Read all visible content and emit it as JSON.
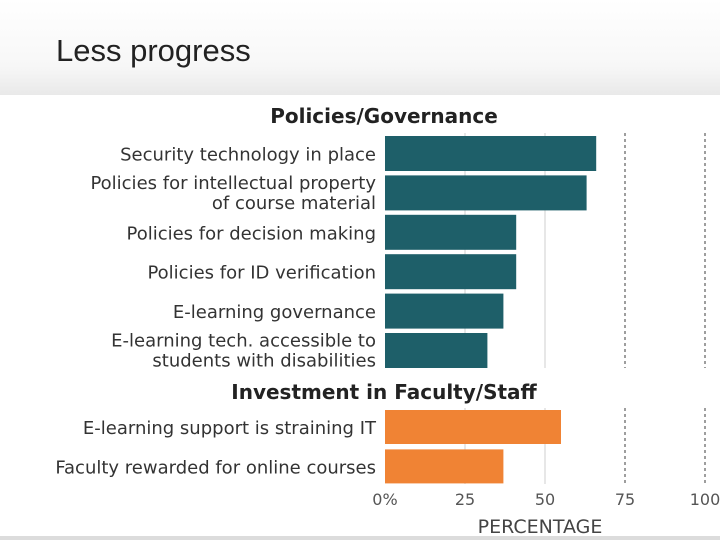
{
  "slide": {
    "title": "Less progress"
  },
  "chart_data": {
    "type": "bar",
    "orientation": "horizontal",
    "xlabel": "PERCENTAGE",
    "xlim": [
      0,
      100
    ],
    "x_ticks": [
      "0%",
      "25",
      "50",
      "75",
      "100"
    ],
    "groups": [
      {
        "title": "Policies/Governance",
        "color": "#1e5f69",
        "bars": [
          {
            "label": [
              "Security technology in place"
            ],
            "value": 66
          },
          {
            "label": [
              "Policies for intellectual property",
              "of course material"
            ],
            "value": 63
          },
          {
            "label": [
              "Policies for decision making"
            ],
            "value": 41
          },
          {
            "label": [
              "Policies for ID verification"
            ],
            "value": 41
          },
          {
            "label": [
              "E-learning governance"
            ],
            "value": 37
          },
          {
            "label": [
              "E-learning tech. accessible to",
              "students with disabilities"
            ],
            "value": 32
          }
        ]
      },
      {
        "title": "Investment in Faculty/Staff",
        "color": "#f08334",
        "bars": [
          {
            "label": [
              "E-learning support is straining IT"
            ],
            "value": 55
          },
          {
            "label": [
              "Faculty rewarded for online courses"
            ],
            "value": 37
          }
        ]
      }
    ]
  }
}
